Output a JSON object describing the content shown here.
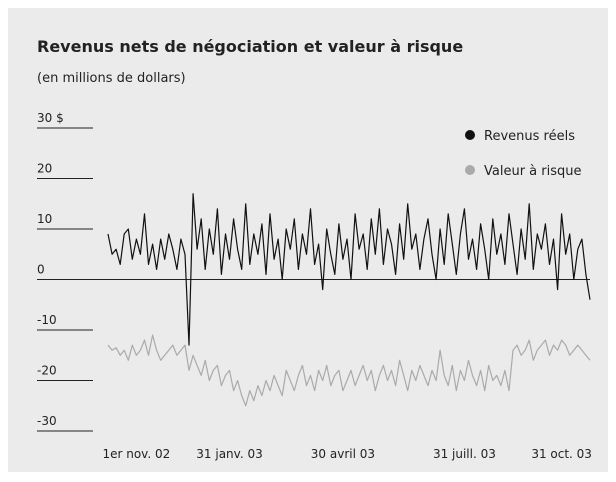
{
  "chart_data": {
    "type": "line",
    "title": "Revenus nets de négociation et valeur à risque",
    "subtitle": "(en millions de dollars)",
    "categories": [
      null,
      null,
      null,
      null,
      null,
      null,
      null,
      "1er nov. 02",
      null,
      null,
      null,
      null,
      null,
      null,
      null,
      null,
      null,
      null,
      null,
      null,
      null,
      null,
      null,
      null,
      null,
      null,
      null,
      null,
      null,
      null,
      "31 janv. 03",
      null,
      null,
      null,
      null,
      null,
      null,
      null,
      null,
      null,
      null,
      null,
      null,
      null,
      null,
      null,
      null,
      null,
      null,
      null,
      null,
      null,
      null,
      null,
      null,
      null,
      null,
      null,
      "30 avril 03",
      null,
      null,
      null,
      null,
      null,
      null,
      null,
      null,
      null,
      null,
      null,
      null,
      null,
      null,
      null,
      null,
      null,
      null,
      null,
      null,
      null,
      null,
      null,
      null,
      null,
      null,
      null,
      null,
      null,
      "31 juill. 03",
      null,
      null,
      null,
      null,
      null,
      null,
      null,
      null,
      null,
      null,
      null,
      null,
      null,
      null,
      null,
      null,
      null,
      null,
      null,
      null,
      null,
      null,
      null,
      "31 oct. 03",
      null,
      null,
      null,
      null,
      null,
      null,
      null
    ],
    "series": [
      {
        "name": "Revenus réels",
        "color": "#111111",
        "values": [
          9,
          5,
          6,
          3,
          9,
          10,
          4,
          8,
          5,
          13,
          3,
          7,
          2,
          8,
          4,
          9,
          6,
          2,
          8,
          5,
          -13,
          17,
          6,
          12,
          2,
          10,
          5,
          14,
          1,
          9,
          4,
          12,
          6,
          2,
          15,
          3,
          9,
          5,
          11,
          1,
          13,
          4,
          8,
          0,
          10,
          6,
          12,
          2,
          9,
          5,
          14,
          3,
          7,
          -2,
          10,
          5,
          1,
          11,
          4,
          8,
          0,
          13,
          6,
          9,
          2,
          12,
          5,
          14,
          3,
          10,
          7,
          1,
          11,
          4,
          15,
          6,
          9,
          2,
          8,
          12,
          5,
          0,
          10,
          3,
          13,
          7,
          1,
          9,
          14,
          4,
          8,
          2,
          11,
          6,
          0,
          12,
          5,
          9,
          3,
          13,
          7,
          1,
          10,
          4,
          15,
          2,
          9,
          6,
          11,
          3,
          8,
          -2,
          13,
          5,
          9,
          0,
          6,
          8,
          1,
          -4
        ]
      },
      {
        "name": "Valeur à risque",
        "color": "#aaaaaa",
        "values": [
          -13,
          -14,
          -13.5,
          -15,
          -14,
          -16,
          -13,
          -15,
          -14,
          -12,
          -15,
          -11,
          -14,
          -16,
          -15,
          -14,
          -13,
          -15,
          -14,
          -13,
          -18,
          -15,
          -17,
          -19,
          -16,
          -20,
          -18,
          -17,
          -21,
          -19,
          -18,
          -22,
          -20,
          -23,
          -25,
          -22,
          -24,
          -21,
          -23,
          -20,
          -22,
          -19,
          -21,
          -23,
          -18,
          -20,
          -22,
          -19,
          -17,
          -21,
          -19,
          -22,
          -18,
          -20,
          -17,
          -21,
          -19,
          -18,
          -22,
          -20,
          -18,
          -21,
          -19,
          -17,
          -20,
          -18,
          -22,
          -19,
          -17,
          -20,
          -18,
          -21,
          -16,
          -19,
          -22,
          -18,
          -20,
          -17,
          -19,
          -21,
          -18,
          -20,
          -14,
          -19,
          -21,
          -17,
          -22,
          -18,
          -20,
          -16,
          -19,
          -21,
          -18,
          -22,
          -17,
          -20,
          -19,
          -21,
          -18,
          -22,
          -14,
          -13,
          -15,
          -14,
          -12,
          -16,
          -14,
          -13,
          -12,
          -15,
          -13,
          -14,
          -12,
          -13,
          -15,
          -14,
          -13,
          -14,
          -15,
          -16
        ]
      }
    ],
    "ylim": [
      -30,
      30
    ],
    "yticks": [
      {
        "value": 30,
        "label": "30 $"
      },
      20,
      10,
      0,
      -10,
      -20,
      -30
    ]
  }
}
